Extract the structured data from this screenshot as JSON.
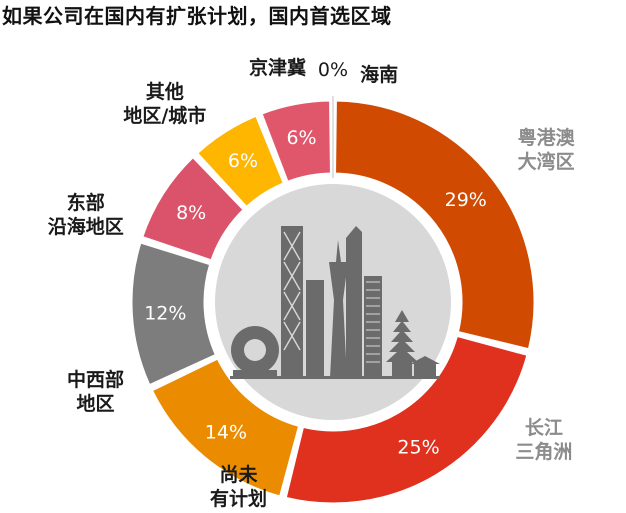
{
  "title": "如果公司在国内有扩张计划，国内首选区域",
  "colors": {
    "hole_fill": "#d8d8d8",
    "skyline": "#6b6b6b",
    "value_text": "#ffffff",
    "dark_label": "#1a1a1a",
    "gray_label": "#8c8c8c"
  },
  "chart_data": {
    "type": "pie",
    "donut": true,
    "title": "如果公司在国内有扩张计划，国内首选区域",
    "slices": [
      {
        "label": "海南",
        "label_display": "海南",
        "value": 0,
        "value_label": "0%",
        "color": "#e0e0e0",
        "label_color": "#1a1a1a"
      },
      {
        "label": "粤港澳大湾区",
        "label_display": "粤港澳\n大湾区",
        "value": 29,
        "value_label": "29%",
        "color": "#d04a02",
        "label_color": "#8c8c8c"
      },
      {
        "label": "长江三角洲",
        "label_display": "长江\n三角洲",
        "value": 25,
        "value_label": "25%",
        "color": "#e0301e",
        "label_color": "#8c8c8c"
      },
      {
        "label": "尚未有计划",
        "label_display": "尚未\n有计划",
        "value": 14,
        "value_label": "14%",
        "color": "#eb8c00",
        "label_color": "#1a1a1a"
      },
      {
        "label": "中西部地区",
        "label_display": "中西部\n地区",
        "value": 12,
        "value_label": "12%",
        "color": "#7d7d7d",
        "label_color": "#1a1a1a"
      },
      {
        "label": "东部沿海地区",
        "label_display": "东部\n沿海地区",
        "value": 8,
        "value_label": "8%",
        "color": "#db536a",
        "label_color": "#1a1a1a"
      },
      {
        "label": "其他地区/城市",
        "label_display": "其他\n地区/城市",
        "value": 6,
        "value_label": "6%",
        "color": "#ffb600",
        "label_color": "#1a1a1a"
      },
      {
        "label": "京津冀",
        "label_display": "京津冀",
        "value": 6,
        "value_label": "6%",
        "color": "#e0576b",
        "label_color": "#1a1a1a"
      }
    ]
  }
}
